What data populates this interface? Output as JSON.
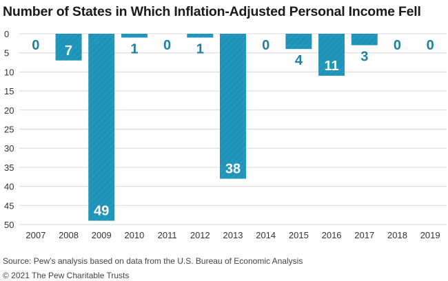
{
  "title": "Number of States in Which Inflation-Adjusted Personal Income Fell",
  "source": "Source: Pew’s analysis based on data from the U.S. Bureau of Economic Analysis",
  "copyright": "© 2021 The Pew Charitable Trusts",
  "colors": {
    "bar": "#1f93b8",
    "label_outside": "#1f7fa3",
    "label_inside": "#ffffff",
    "grid": "#d9d9d9"
  },
  "chart_data": {
    "type": "bar",
    "orientation": "vertical",
    "y_axis_inverted": true,
    "title": "Number of States in Which Inflation-Adjusted Personal Income Fell",
    "xlabel": "",
    "ylabel": "",
    "categories": [
      "2007",
      "2008",
      "2009",
      "2010",
      "2011",
      "2012",
      "2013",
      "2014",
      "2015",
      "2016",
      "2017",
      "2018",
      "2019"
    ],
    "values": [
      0,
      7,
      49,
      1,
      0,
      1,
      38,
      0,
      4,
      11,
      3,
      0,
      0
    ],
    "ylim": [
      0,
      50
    ],
    "yticks": [
      0,
      5,
      10,
      15,
      20,
      25,
      30,
      35,
      40,
      45,
      50
    ],
    "grid": true,
    "data_labels": true
  }
}
